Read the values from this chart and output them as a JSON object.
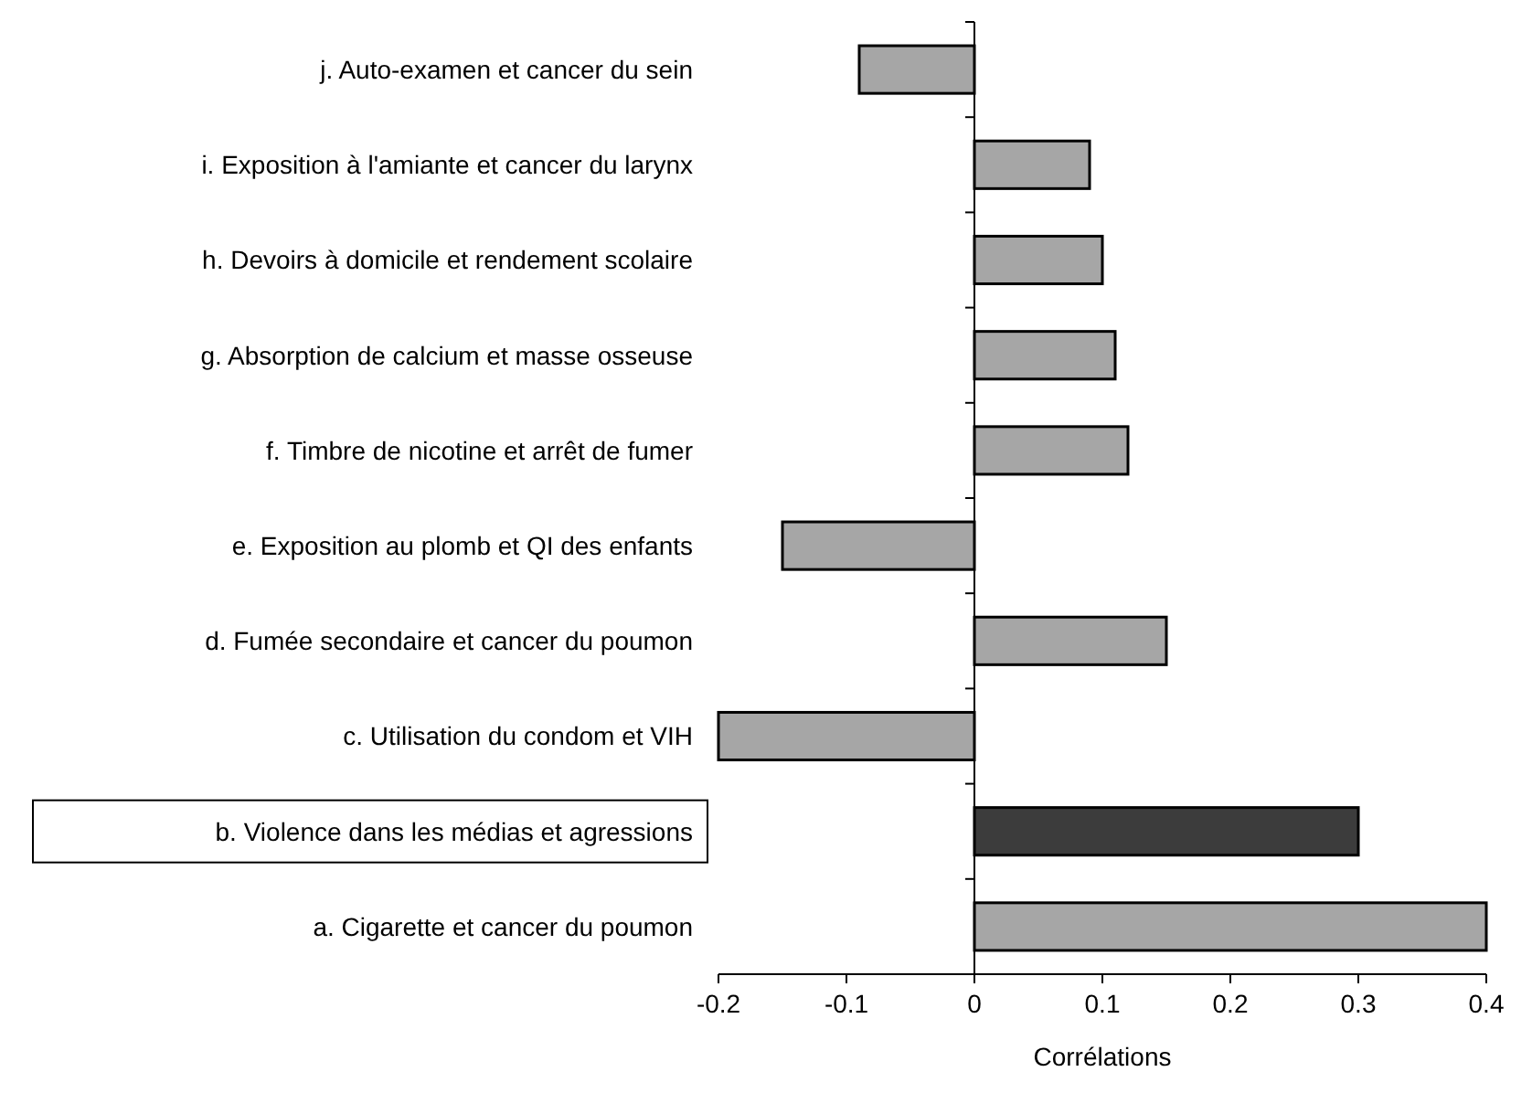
{
  "chart_data": {
    "type": "bar",
    "orientation": "horizontal",
    "xlabel": "Corrélations",
    "categories": [
      "j. Auto-examen et cancer du sein",
      "i. Exposition à l'amiante et cancer du larynx",
      "h. Devoirs à domicile et rendement scolaire",
      "g. Absorption de calcium et masse osseuse",
      "f. Timbre de nicotine et arrêt de fumer",
      "e. Exposition au plomb et QI des enfants",
      "d. Fumée secondaire et cancer du poumon",
      "c. Utilisation du condom et VIH",
      "b. Violence dans les médias et agressions",
      "a. Cigarette et cancer du poumon"
    ],
    "values": [
      -0.09,
      0.09,
      0.1,
      0.11,
      0.12,
      -0.15,
      0.15,
      -0.2,
      0.3,
      0.4
    ],
    "colors": [
      "#a6a6a6",
      "#a6a6a6",
      "#a6a6a6",
      "#a6a6a6",
      "#a6a6a6",
      "#a6a6a6",
      "#a6a6a6",
      "#a6a6a6",
      "#3c3c3c",
      "#a6a6a6"
    ],
    "xlim": [
      -0.2,
      0.4
    ],
    "xticks": [
      -0.2,
      -0.1,
      0,
      0.1,
      0.2,
      0.3,
      0.4
    ]
  }
}
